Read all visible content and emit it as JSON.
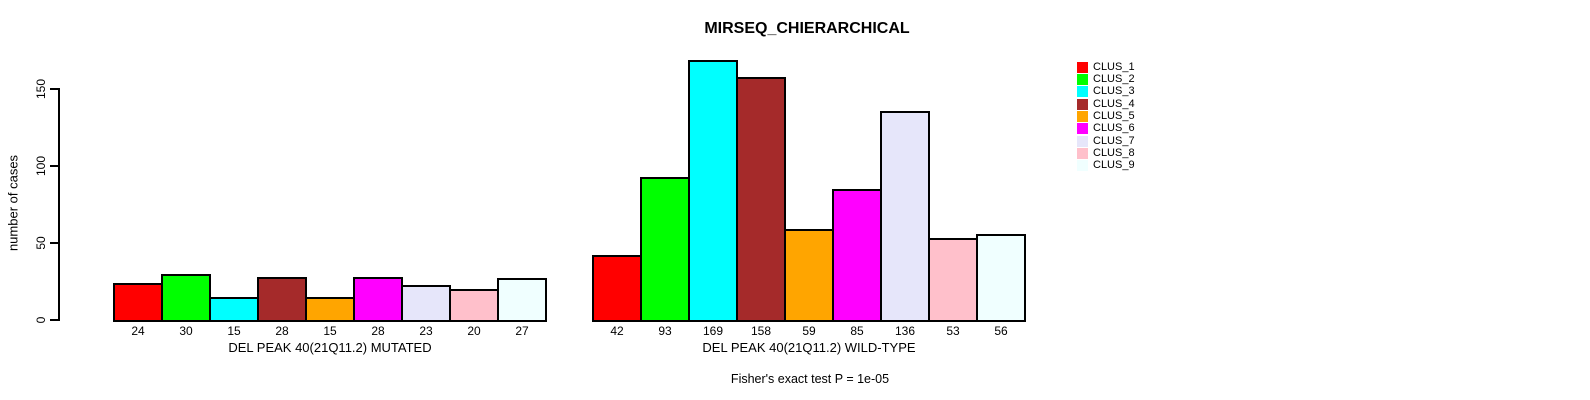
{
  "chart_data": {
    "type": "bar",
    "title": "MIRSEQ_CHIERARCHICAL",
    "ylabel": "number of cases",
    "yticks": [
      0,
      50,
      100,
      150
    ],
    "ylim": [
      0,
      175
    ],
    "grid": false,
    "legend_position": "top-right",
    "categories": [
      "DEL PEAK 40(21Q11.2) MUTATED",
      "DEL PEAK 40(21Q11.2) WILD-TYPE"
    ],
    "series": [
      {
        "name": "CLUS_1",
        "color": "#FF0000",
        "values": [
          24,
          42
        ]
      },
      {
        "name": "CLUS_2",
        "color": "#00FF00",
        "values": [
          30,
          93
        ]
      },
      {
        "name": "CLUS_3",
        "color": "#00FFFF",
        "values": [
          15,
          169
        ]
      },
      {
        "name": "CLUS_4",
        "color": "#A52A2A",
        "values": [
          28,
          158
        ]
      },
      {
        "name": "CLUS_5",
        "color": "#FFA500",
        "values": [
          15,
          59
        ]
      },
      {
        "name": "CLUS_6",
        "color": "#FF00FF",
        "values": [
          28,
          85
        ]
      },
      {
        "name": "CLUS_7",
        "color": "#E6E6FA",
        "values": [
          23,
          136
        ]
      },
      {
        "name": "CLUS_8",
        "color": "#FFC0CB",
        "values": [
          20,
          53
        ]
      },
      {
        "name": "CLUS_9",
        "color": "#F0FFFF",
        "values": [
          27,
          56
        ]
      }
    ],
    "annotation": "Fisher's exact test P = 1e-05"
  }
}
